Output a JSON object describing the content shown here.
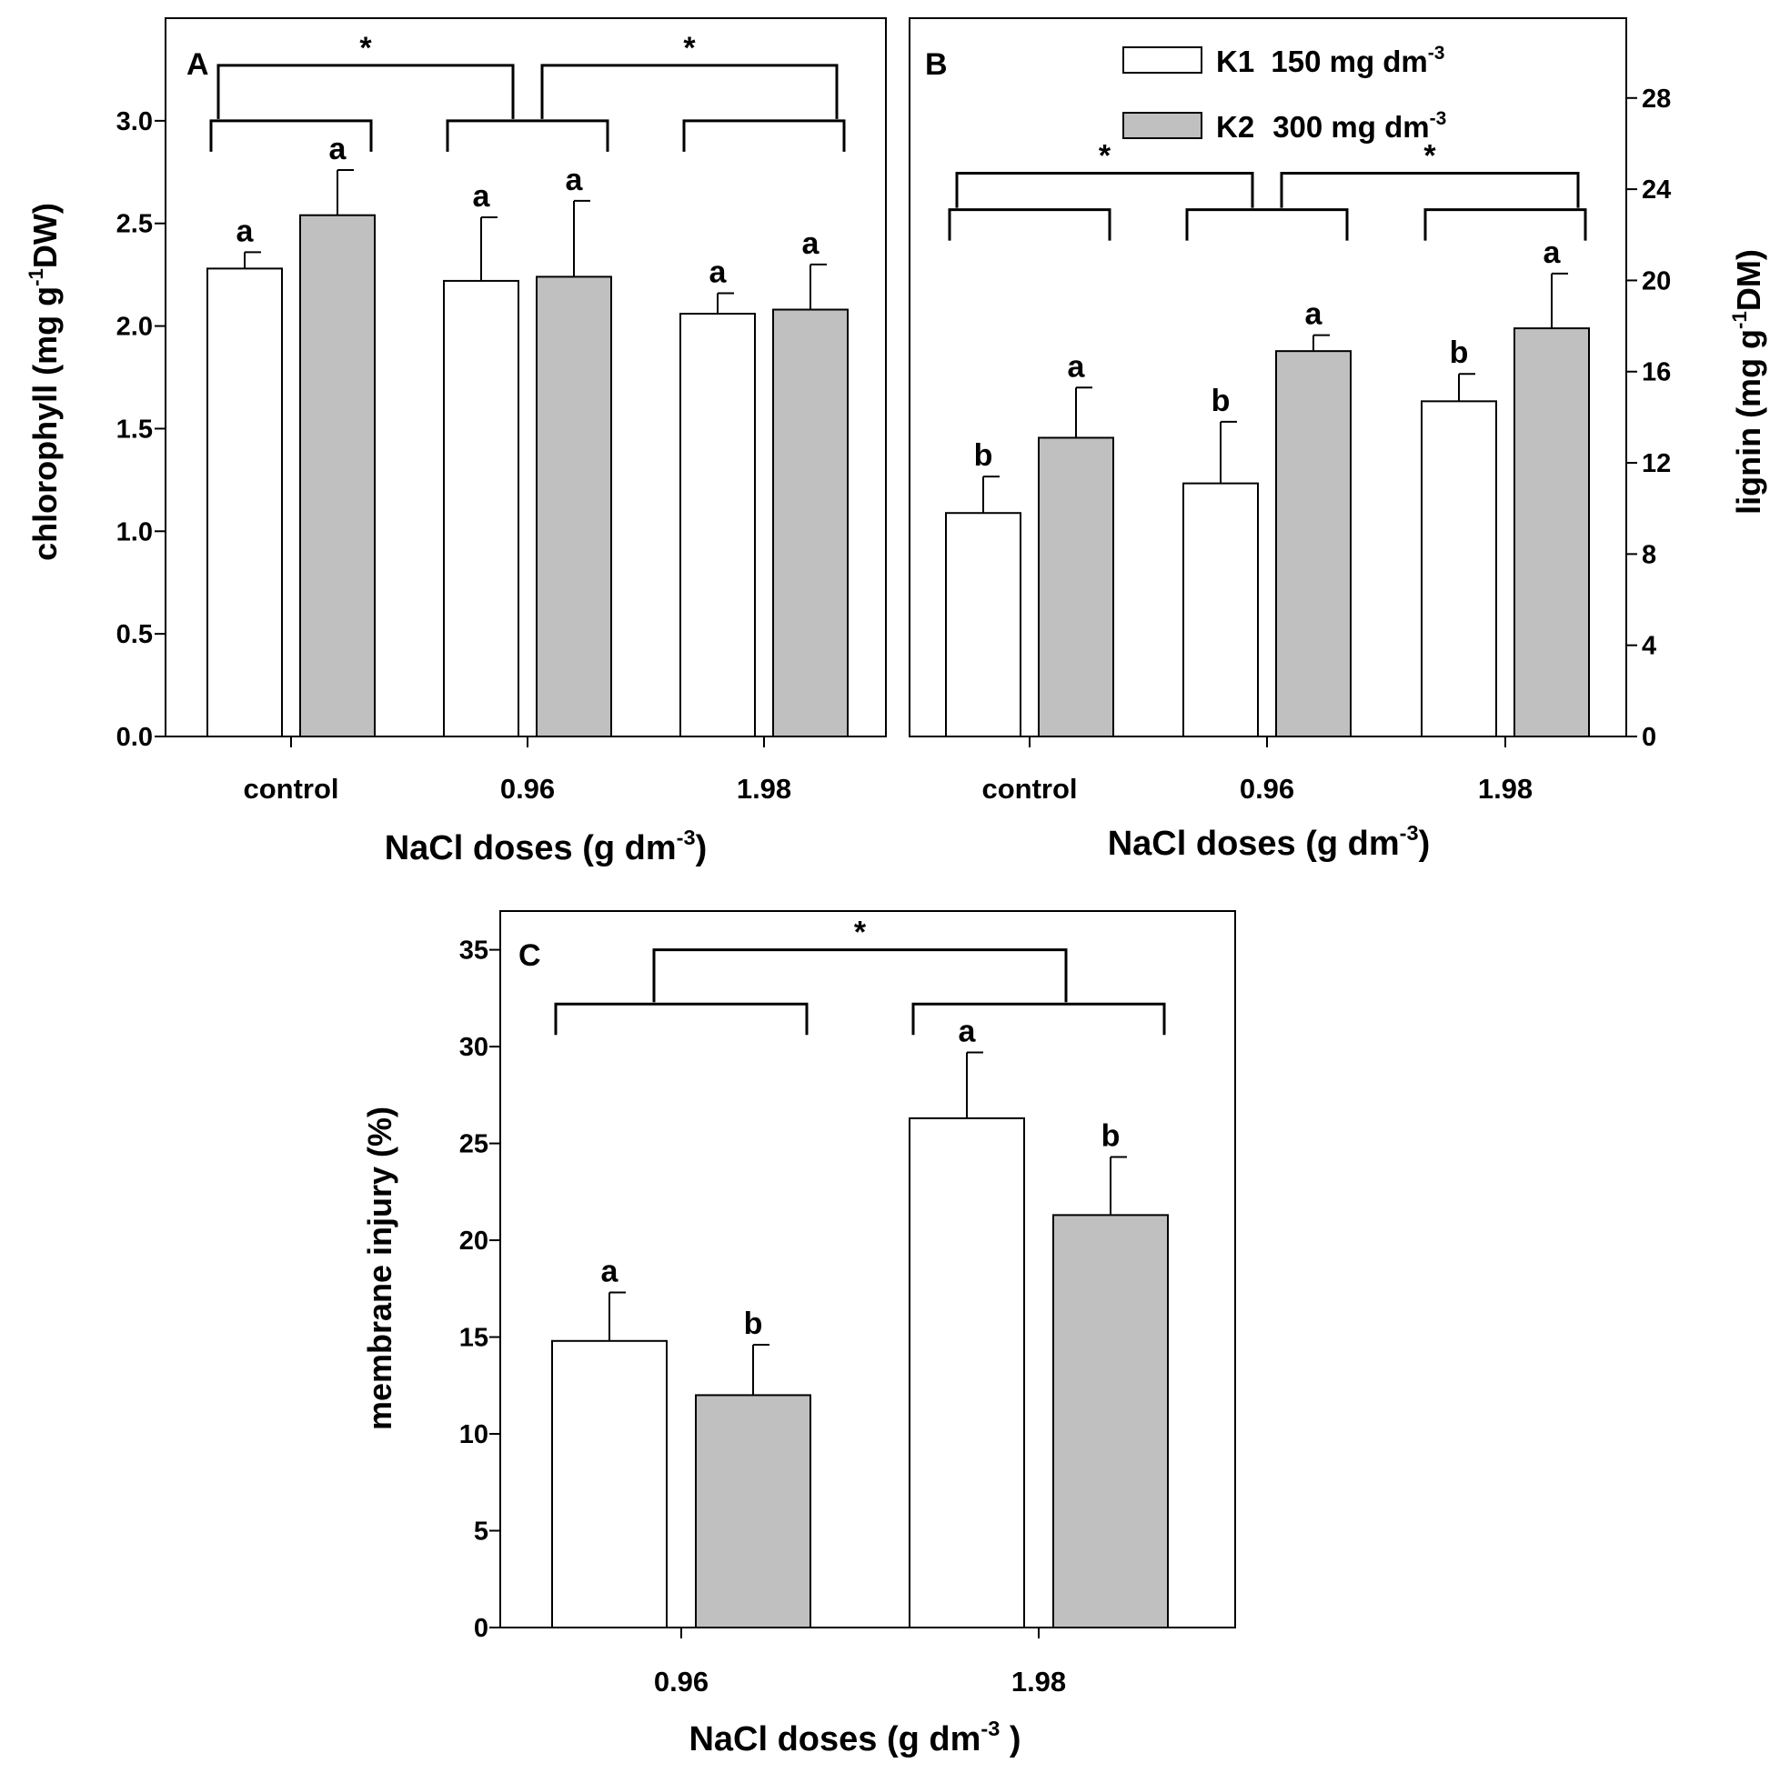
{
  "legend": [
    {
      "key": "K1",
      "label": "150 mg dm",
      "sup": "-3",
      "color": "#ffffff"
    },
    {
      "key": "K2",
      "label": "300 mg dm",
      "sup": "-3",
      "color": "#c0c0c0"
    }
  ],
  "chart_data": [
    {
      "panel": "A",
      "type": "bar",
      "categories": [
        "control",
        "0.96",
        "1.98"
      ],
      "series": [
        {
          "name": "K1 150 mg dm-3",
          "color": "#ffffff",
          "values": [
            2.28,
            2.22,
            2.06
          ],
          "errors": [
            0.08,
            0.31,
            0.1
          ],
          "letters": [
            "a",
            "a",
            "a"
          ]
        },
        {
          "name": "K2 300 mg dm-3",
          "color": "#c0c0c0",
          "values": [
            2.54,
            2.24,
            2.08
          ],
          "errors": [
            0.22,
            0.37,
            0.22
          ],
          "letters": [
            "a",
            "a",
            "a"
          ]
        }
      ],
      "ylabel": "chlorophyll (mg g",
      "ylabel_sup": "-1",
      "ylabel_tail": "DW)",
      "xlabel": "NaCl doses  (g dm",
      "xlabel_sup": "-3",
      "xlabel_tail": ")",
      "ylim": [
        0,
        3.5
      ],
      "yticks": [
        "0.0",
        "0.5",
        "1.0",
        "1.5",
        "2.0",
        "2.5",
        "3.0"
      ],
      "yaxis_side": "left",
      "brackets_level": 3.0,
      "significance_level": 3.27,
      "significance": [
        {
          "from": "control",
          "to": "0.96",
          "mark": "*"
        },
        {
          "from": "0.96",
          "to": "1.98",
          "mark": "*"
        }
      ]
    },
    {
      "panel": "B",
      "type": "bar",
      "categories": [
        "control",
        "0.96",
        "1.98"
      ],
      "series": [
        {
          "name": "K1 150 mg dm-3",
          "color": "#ffffff",
          "values": [
            9.8,
            11.1,
            14.7
          ],
          "errors": [
            1.6,
            2.7,
            1.2
          ],
          "letters": [
            "b",
            "b",
            "b"
          ]
        },
        {
          "name": "K2 300 mg dm-3",
          "color": "#c0c0c0",
          "values": [
            13.1,
            16.9,
            17.9
          ],
          "errors": [
            2.2,
            0.7,
            2.4
          ],
          "letters": [
            "a",
            "a",
            "a"
          ]
        }
      ],
      "ylabel": "lignin (mg g",
      "ylabel_sup": "-1",
      "ylabel_tail": "DM)",
      "xlabel": "NaCl doses  (g dm",
      "xlabel_sup": "-3",
      "xlabel_tail": ")",
      "ylim": [
        0,
        31.5
      ],
      "yticks": [
        "0",
        "4",
        "8",
        "12",
        "16",
        "20",
        "24",
        "28"
      ],
      "yaxis_side": "right",
      "brackets_level": 23.1,
      "significance_level": 24.7,
      "significance": [
        {
          "from": "control",
          "to": "0.96",
          "mark": "*"
        },
        {
          "from": "0.96",
          "to": "1.98",
          "mark": "*"
        }
      ]
    },
    {
      "panel": "C",
      "type": "bar",
      "categories": [
        "0.96",
        "1.98"
      ],
      "series": [
        {
          "name": "K1 150 mg dm-3",
          "color": "#ffffff",
          "values": [
            14.8,
            26.3
          ],
          "errors": [
            2.5,
            3.4
          ],
          "letters": [
            "a",
            "a"
          ]
        },
        {
          "name": "K2 300 mg dm-3",
          "color": "#c0c0c0",
          "values": [
            12.0,
            21.3
          ],
          "errors": [
            2.6,
            3.0
          ],
          "letters": [
            "b",
            "b"
          ]
        }
      ],
      "ylabel": "membrane injury (%)",
      "ylabel_sup": "",
      "ylabel_tail": "",
      "xlabel": "NaCl doses  (g dm",
      "xlabel_sup": "-3",
      "xlabel_tail": " )",
      "ylim": [
        0,
        37
      ],
      "yticks": [
        "0",
        "5",
        "10",
        "15",
        "20",
        "25",
        "30",
        "35"
      ],
      "yaxis_side": "left",
      "brackets_level": 32.2,
      "significance_level": 35.0,
      "significance": [
        {
          "from": "0.96",
          "to": "1.98",
          "mark": "*"
        }
      ]
    }
  ]
}
